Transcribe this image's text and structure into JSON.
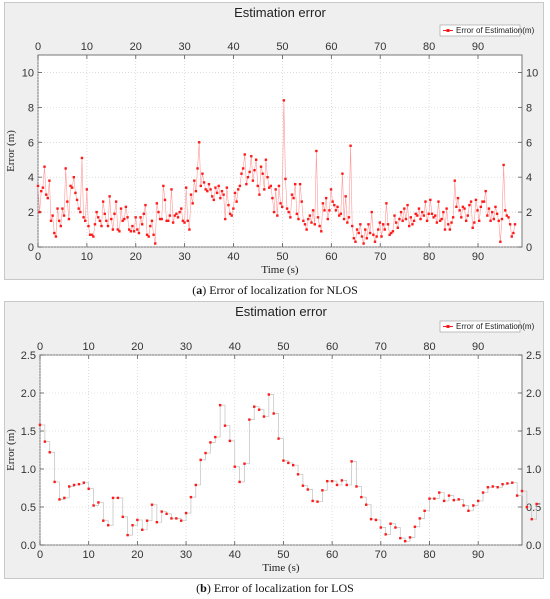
{
  "chart_data": [
    {
      "type": "line",
      "title": "Estimation error",
      "caption_letter": "a",
      "caption_text": "Error of localization for NLOS",
      "xlabel": "Time (s)",
      "ylabel": "Error (m)",
      "xlim": [
        0,
        99
      ],
      "ylim": [
        0,
        11
      ],
      "xticks": [
        0,
        10,
        20,
        30,
        40,
        50,
        60,
        70,
        80,
        90
      ],
      "yticks": [
        0,
        2,
        4,
        6,
        8,
        10
      ],
      "legend": "top-right",
      "grid": true,
      "series": [
        {
          "name": "Error of Estimation(m)",
          "color": "#ff1a1a",
          "step": 0.333,
          "values": [
            3.5,
            2.0,
            3.2,
            3.4,
            4.6,
            3.0,
            2.8,
            3.8,
            1.5,
            1.8,
            0.8,
            0.6,
            2.2,
            1.5,
            1.2,
            2.2,
            1.8,
            4.5,
            2.6,
            1.6,
            3.5,
            3.4,
            4.0,
            3.1,
            2.7,
            2.2,
            2.0,
            5.1,
            1.7,
            1.5,
            3.3,
            1.2,
            0.7,
            0.7,
            0.6,
            1.3,
            2.0,
            1.7,
            1.5,
            1.2,
            2.6,
            1.9,
            1.5,
            1.2,
            2.9,
            1.6,
            1.0,
            1.9,
            2.6,
            1.0,
            0.9,
            2.2,
            1.5,
            1.6,
            2.3,
            1.7,
            1.0,
            0.9,
            1.2,
            0.9,
            1.7,
            1.0,
            0.8,
            1.7,
            1.3,
            1.9,
            2.4,
            0.7,
            0.6,
            1.2,
            1.5,
            0.7,
            0.2,
            2.5,
            2.0,
            1.6,
            1.6,
            3.5,
            2.7,
            1.5,
            1.5,
            1.8,
            3.3,
            1.4,
            1.8,
            1.9,
            1.7,
            2.0,
            2.2,
            1.5,
            1.4,
            3.4,
            1.5,
            1.0,
            3.0,
            2.5,
            3.8,
            3.2,
            4.5,
            6.0,
            3.5,
            4.2,
            3.7,
            3.3,
            3.2,
            3.6,
            3.3,
            2.9,
            2.7,
            3.4,
            3.1,
            3.5,
            2.8,
            3.2,
            3.0,
            1.6,
            3.4,
            2.4,
            1.9,
            1.8,
            2.2,
            3.1,
            2.6,
            3.3,
            3.5,
            4.2,
            4.5,
            5.3,
            3.6,
            4.0,
            4.3,
            5.2,
            3.8,
            4.4,
            5.0,
            3.5,
            3.0,
            4.6,
            4.2,
            3.3,
            5.0,
            4.0,
            3.4,
            3.5,
            2.8,
            2.0,
            3.3,
            1.8,
            3.5,
            2.5,
            2.3,
            8.4,
            3.9,
            2.2,
            2.0,
            1.7,
            3.0,
            2.8,
            3.6,
            1.9,
            1.6,
            3.6,
            2.6,
            1.5,
            1.3,
            1.0,
            1.6,
            1.8,
            1.4,
            2.1,
            1.3,
            5.5,
            1.7,
            1.2,
            0.9,
            2.5,
            2.1,
            2.8,
            1.6,
            2.1,
            3.3,
            2.6,
            2.4,
            2.1,
            2.3,
            1.8,
            1.9,
            4.2,
            1.6,
            2.9,
            1.4,
            1.7,
            5.8,
            1.2,
            0.5,
            0.3,
            1.0,
            0.8,
            1.3,
            0.6,
            0.2,
            1.0,
            0.5,
            1.3,
            0.8,
            2.0,
            0.7,
            0.3,
            0.6,
            1.0,
            1.4,
            0.6,
            1.3,
            1.0,
            2.5,
            1.3,
            0.7,
            0.8,
            0.9,
            1.8,
            1.4,
            1.1,
            1.6,
            2.0,
            1.5,
            2.2,
            1.6,
            2.4,
            1.2,
            1.7,
            1.3,
            1.5,
            1.9,
            1.8,
            2.2,
            1.6,
            2.0,
            1.8,
            2.6,
            1.5,
            1.9,
            2.7,
            1.9,
            1.7,
            1.8,
            1.4,
            2.6,
            1.5,
            1.6,
            2.0,
            1.0,
            2.2,
            1.3,
            1.0,
            1.4,
            1.7,
            3.8,
            2.3,
            2.8,
            2.1,
            1.7,
            2.3,
            2.2,
            1.5,
            1.8,
            2.4,
            2.6,
            1.1,
            1.4,
            2.7,
            2.1,
            1.5,
            2.3,
            2.6,
            2.6,
            3.2,
            1.8,
            2.2,
            1.5,
            2.0,
            1.6,
            2.3,
            1.9,
            1.5,
            0.3,
            1.6,
            4.7,
            2.1,
            1.8,
            1.7,
            1.3,
            0.6,
            0.8,
            1.3
          ]
        }
      ]
    },
    {
      "type": "line",
      "title": "Estimation error",
      "caption_letter": "b",
      "caption_text": "Error of localization for LOS",
      "xlabel": "Time (s)",
      "ylabel": "Error (m)",
      "xlim": [
        0,
        99
      ],
      "ylim": [
        0,
        2.5
      ],
      "xticks": [
        0,
        10,
        20,
        30,
        40,
        50,
        60,
        70,
        80,
        90
      ],
      "yticks": [
        0,
        0.5,
        1.0,
        1.5,
        2.0,
        2.5
      ],
      "legend": "top-right",
      "grid": true,
      "series": [
        {
          "name": "Error of Estimation(m)",
          "color": "#ff1a1a",
          "step": 1,
          "values": [
            1.58,
            1.36,
            1.22,
            0.83,
            0.6,
            0.62,
            0.77,
            0.79,
            0.8,
            0.82,
            0.74,
            0.52,
            0.56,
            0.32,
            0.26,
            0.62,
            0.62,
            0.37,
            0.13,
            0.26,
            0.33,
            0.2,
            0.32,
            0.53,
            0.3,
            0.44,
            0.41,
            0.35,
            0.35,
            0.32,
            0.42,
            0.63,
            0.79,
            1.12,
            1.21,
            1.35,
            1.42,
            1.84,
            1.57,
            1.37,
            1.03,
            0.83,
            1.07,
            1.65,
            1.82,
            1.78,
            1.69,
            1.98,
            1.73,
            1.4,
            1.11,
            1.08,
            1.05,
            0.93,
            0.78,
            0.73,
            0.58,
            0.57,
            0.72,
            0.84,
            0.84,
            0.79,
            0.85,
            0.79,
            1.1,
            0.77,
            0.63,
            0.53,
            0.34,
            0.33,
            0.23,
            0.14,
            0.28,
            0.23,
            0.09,
            0.05,
            0.1,
            0.24,
            0.35,
            0.45,
            0.61,
            0.61,
            0.69,
            0.58,
            0.65,
            0.59,
            0.6,
            0.52,
            0.45,
            0.52,
            0.58,
            0.69,
            0.76,
            0.77,
            0.76,
            0.8,
            0.81,
            0.82,
            0.65,
            0.71,
            0.5,
            0.34,
            0.54
          ]
        }
      ]
    }
  ]
}
